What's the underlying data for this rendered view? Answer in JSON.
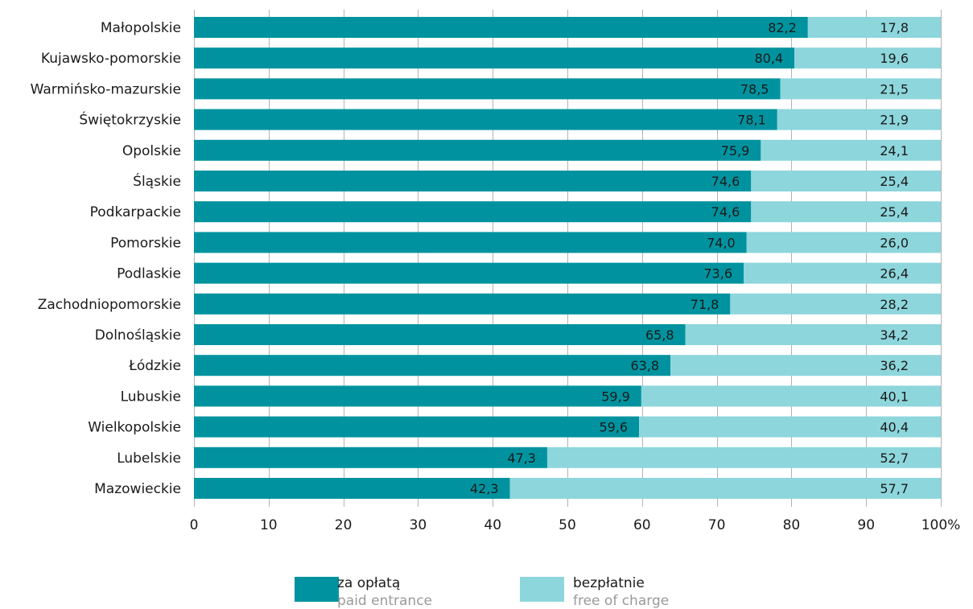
{
  "chart_data": {
    "type": "bar",
    "orientation": "horizontal",
    "stacked": true,
    "categories": [
      "Małopolskie",
      "Kujawsko-pomorskie",
      "Warmińsko-mazurskie",
      "Świętokrzyskie",
      "Opolskie",
      "Śląskie",
      "Podkarpackie",
      "Pomorskie",
      "Podlaskie",
      "Zachodniopomorskie",
      "Dolnośląskie",
      "Łódzkie",
      "Lubuskie",
      "Wielkopolskie",
      "Lubelskie",
      "Mazowieckie"
    ],
    "series": [
      {
        "name": "za opłatą",
        "name_en": "paid entrance",
        "color": "#00939f",
        "values": [
          82.2,
          80.4,
          78.5,
          78.1,
          75.9,
          74.6,
          74.6,
          74.0,
          73.6,
          71.8,
          65.8,
          63.8,
          59.9,
          59.6,
          47.3,
          42.3
        ],
        "labels": [
          "82,2",
          "80,4",
          "78,5",
          "78,1",
          "75,9",
          "74,6",
          "74,6",
          "74,0",
          "73,6",
          "71,8",
          "65,8",
          "63,8",
          "59,9",
          "59,6",
          "47,3",
          "42,3"
        ]
      },
      {
        "name": "bezpłatnie",
        "name_en": "free of charge",
        "color": "#8dd6dc",
        "values": [
          17.8,
          19.6,
          21.5,
          21.9,
          24.1,
          25.4,
          25.4,
          26.0,
          26.4,
          28.2,
          34.2,
          36.2,
          40.1,
          40.4,
          52.7,
          57.7
        ],
        "labels": [
          "17,8",
          "19,6",
          "21,5",
          "21,9",
          "24,1",
          "25,4",
          "25,4",
          "26,0",
          "26,4",
          "28,2",
          "34,2",
          "36,2",
          "40,1",
          "40,4",
          "52,7",
          "57,7"
        ]
      }
    ],
    "xlim": [
      0,
      100
    ],
    "xticks": [
      0,
      10,
      20,
      30,
      40,
      50,
      60,
      70,
      80,
      90,
      100
    ],
    "xtick_labels": [
      "0",
      "10",
      "20",
      "30",
      "40",
      "50",
      "60",
      "70",
      "80",
      "90",
      "100%"
    ],
    "grid": true,
    "legend_position": "bottom-center"
  }
}
